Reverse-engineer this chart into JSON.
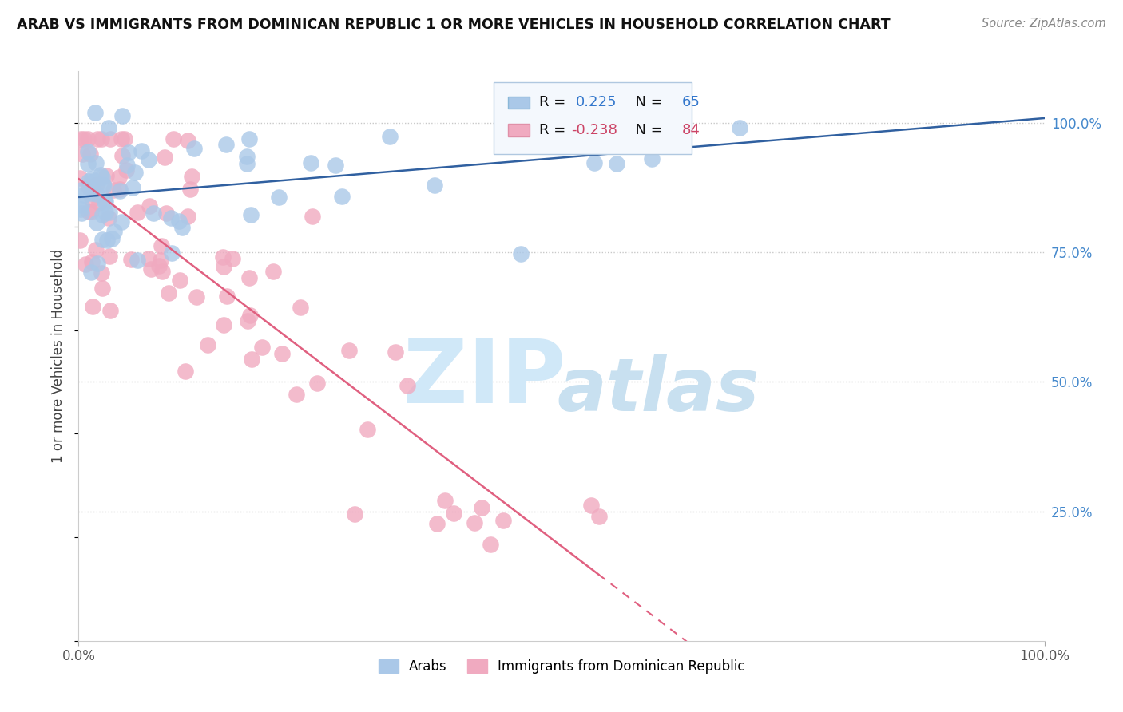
{
  "title": "ARAB VS IMMIGRANTS FROM DOMINICAN REPUBLIC 1 OR MORE VEHICLES IN HOUSEHOLD CORRELATION CHART",
  "source": "Source: ZipAtlas.com",
  "ylabel": "1 or more Vehicles in Household",
  "xlim": [
    0.0,
    1.0
  ],
  "ylim": [
    0.0,
    1.1
  ],
  "ytick_positions": [
    0.25,
    0.5,
    0.75,
    1.0
  ],
  "ytick_labels": [
    "25.0%",
    "50.0%",
    "75.0%",
    "100.0%"
  ],
  "arab_R": 0.225,
  "arab_N": 65,
  "dom_R": -0.238,
  "dom_N": 84,
  "arab_color": "#aac8e8",
  "arab_line_color": "#3060a0",
  "dom_color": "#f0aac0",
  "dom_line_color": "#e06080",
  "background_color": "#ffffff",
  "watermark_zip_color": "#d0e8f8",
  "watermark_atlas_color": "#c8e0f0"
}
